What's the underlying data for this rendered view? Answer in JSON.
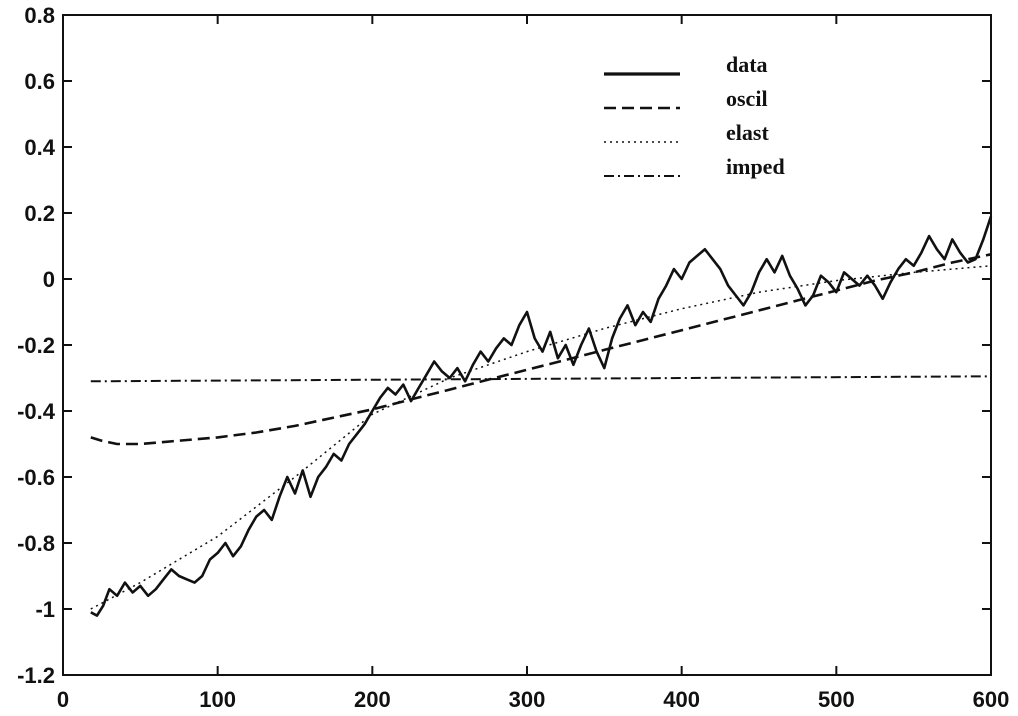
{
  "chart_data": {
    "type": "line",
    "title": "",
    "xlabel": "",
    "ylabel": "",
    "xlim": [
      0,
      600
    ],
    "ylim": [
      -1.2,
      0.8
    ],
    "grid": false,
    "legend_position": "top-right",
    "x_ticks": [
      "0",
      "100",
      "200",
      "300",
      "400",
      "500",
      "600"
    ],
    "y_ticks": [
      "0.8",
      "0.6",
      "0.4",
      "0.2",
      "0",
      "-0.2",
      "-0.4",
      "-0.6",
      "-0.8",
      "-1",
      "-1.2"
    ],
    "series": [
      {
        "name": "data",
        "style": "solid",
        "x": [
          18,
          22,
          26,
          30,
          35,
          40,
          45,
          50,
          55,
          60,
          65,
          70,
          75,
          80,
          85,
          90,
          95,
          100,
          105,
          110,
          115,
          120,
          125,
          130,
          135,
          140,
          145,
          150,
          155,
          160,
          165,
          170,
          175,
          180,
          185,
          190,
          195,
          200,
          205,
          210,
          215,
          220,
          225,
          230,
          235,
          240,
          245,
          250,
          255,
          260,
          265,
          270,
          275,
          280,
          285,
          290,
          295,
          300,
          305,
          310,
          315,
          320,
          325,
          330,
          335,
          340,
          345,
          350,
          355,
          360,
          365,
          370,
          375,
          380,
          385,
          390,
          395,
          400,
          405,
          410,
          415,
          420,
          425,
          430,
          435,
          440,
          445,
          450,
          455,
          460,
          465,
          470,
          475,
          480,
          485,
          490,
          495,
          500,
          505,
          510,
          515,
          520,
          525,
          530,
          535,
          540,
          545,
          550,
          555,
          560,
          565,
          570,
          575,
          580,
          585,
          590,
          595,
          600
        ],
        "y": [
          -1.01,
          -1.02,
          -0.99,
          -0.94,
          -0.96,
          -0.92,
          -0.95,
          -0.93,
          -0.96,
          -0.94,
          -0.91,
          -0.88,
          -0.9,
          -0.91,
          -0.92,
          -0.9,
          -0.85,
          -0.83,
          -0.8,
          -0.84,
          -0.81,
          -0.76,
          -0.72,
          -0.7,
          -0.73,
          -0.66,
          -0.6,
          -0.65,
          -0.58,
          -0.66,
          -0.6,
          -0.57,
          -0.53,
          -0.55,
          -0.5,
          -0.47,
          -0.44,
          -0.4,
          -0.36,
          -0.33,
          -0.35,
          -0.32,
          -0.37,
          -0.33,
          -0.29,
          -0.25,
          -0.28,
          -0.3,
          -0.27,
          -0.31,
          -0.26,
          -0.22,
          -0.25,
          -0.21,
          -0.18,
          -0.2,
          -0.14,
          -0.1,
          -0.18,
          -0.22,
          -0.16,
          -0.24,
          -0.2,
          -0.26,
          -0.2,
          -0.15,
          -0.22,
          -0.27,
          -0.18,
          -0.12,
          -0.08,
          -0.14,
          -0.1,
          -0.13,
          -0.06,
          -0.02,
          0.03,
          0.0,
          0.05,
          0.07,
          0.09,
          0.06,
          0.03,
          -0.02,
          -0.05,
          -0.08,
          -0.04,
          0.02,
          0.06,
          0.02,
          0.07,
          0.01,
          -0.03,
          -0.08,
          -0.05,
          0.01,
          -0.01,
          -0.04,
          0.02,
          0.0,
          -0.02,
          0.01,
          -0.02,
          -0.06,
          -0.01,
          0.03,
          0.06,
          0.04,
          0.08,
          0.13,
          0.09,
          0.06,
          0.12,
          0.08,
          0.05,
          0.06,
          0.12,
          0.19
        ]
      },
      {
        "name": "oscil",
        "style": "dashed",
        "x": [
          18,
          25,
          35,
          50,
          75,
          100,
          125,
          150,
          175,
          200,
          225,
          250,
          275,
          300,
          325,
          350,
          375,
          400,
          425,
          450,
          475,
          500,
          525,
          550,
          575,
          600
        ],
        "y": [
          -0.48,
          -0.49,
          -0.5,
          -0.5,
          -0.49,
          -0.48,
          -0.465,
          -0.445,
          -0.42,
          -0.395,
          -0.365,
          -0.335,
          -0.305,
          -0.275,
          -0.245,
          -0.215,
          -0.185,
          -0.155,
          -0.125,
          -0.095,
          -0.065,
          -0.035,
          -0.005,
          0.02,
          0.05,
          0.075
        ]
      },
      {
        "name": "elast",
        "style": "dotted",
        "x": [
          18,
          50,
          100,
          150,
          200,
          250,
          300,
          350,
          400,
          450,
          500,
          550,
          600
        ],
        "y": [
          -1.0,
          -0.92,
          -0.78,
          -0.6,
          -0.41,
          -0.3,
          -0.22,
          -0.15,
          -0.09,
          -0.04,
          -0.005,
          0.02,
          0.04
        ]
      },
      {
        "name": "imped",
        "style": "dashdot",
        "x": [
          18,
          600
        ],
        "y": [
          -0.31,
          -0.295
        ]
      }
    ]
  }
}
